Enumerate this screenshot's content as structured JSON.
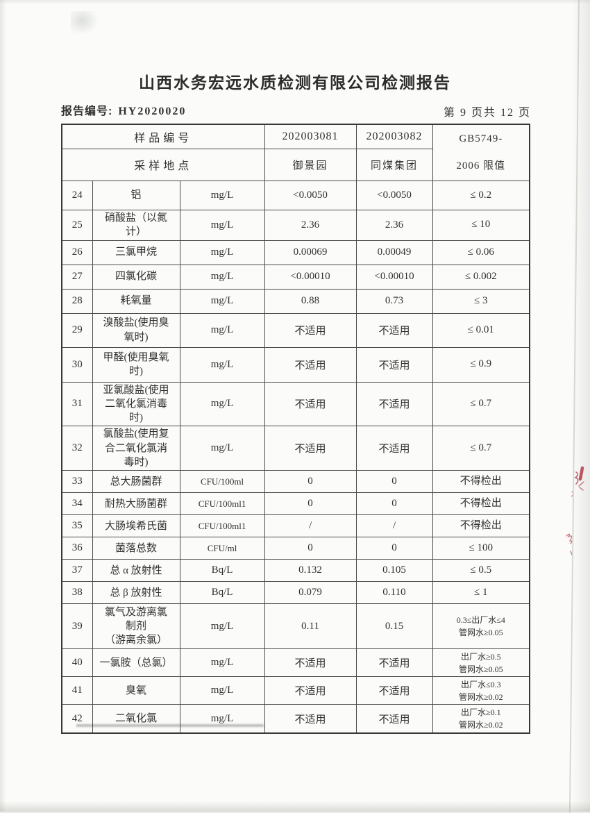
{
  "page": {
    "title": "山西水务宏远水质检测有限公司检测报告",
    "report_no_label": "报告编号:",
    "report_no": "HY2020020",
    "page_indicator": "第 9 页共 12 页"
  },
  "table": {
    "header": {
      "row1_label": "样品编号",
      "row2_label": "采样地点",
      "sample1_id": "202003081",
      "sample2_id": "202003082",
      "sample1_location": "御景园",
      "sample2_location": "同煤集团",
      "limit_label": "GB5749-\n2006 限值"
    },
    "rows": [
      {
        "no": "24",
        "name": "铝",
        "unit": "mg/L",
        "v1": "<0.0050",
        "v2": "<0.0050",
        "limit": "≤ 0.2"
      },
      {
        "no": "25",
        "name": "硝酸盐（以氮\n计）",
        "unit": "mg/L",
        "v1": "2.36",
        "v2": "2.36",
        "limit": "≤ 10"
      },
      {
        "no": "26",
        "name": "三氯甲烷",
        "unit": "mg/L",
        "v1": "0.00069",
        "v2": "0.00049",
        "limit": "≤ 0.06"
      },
      {
        "no": "27",
        "name": "四氯化碳",
        "unit": "mg/L",
        "v1": "<0.00010",
        "v2": "<0.00010",
        "limit": "≤ 0.002"
      },
      {
        "no": "28",
        "name": "耗氧量",
        "unit": "mg/L",
        "v1": "0.88",
        "v2": "0.73",
        "limit": "≤ 3"
      },
      {
        "no": "29",
        "name": "溴酸盐(使用臭\n氧时)",
        "unit": "mg/L",
        "v1": "不适用",
        "v2": "不适用",
        "limit": "≤ 0.01"
      },
      {
        "no": "30",
        "name": "甲醛(使用臭氧\n时)",
        "unit": "mg/L",
        "v1": "不适用",
        "v2": "不适用",
        "limit": "≤ 0.9"
      },
      {
        "no": "31",
        "name": "亚氯酸盐(使用\n二氧化氯消毒\n时)",
        "unit": "mg/L",
        "v1": "不适用",
        "v2": "不适用",
        "limit": "≤ 0.7"
      },
      {
        "no": "32",
        "name": "氯酸盐(使用复\n合二氧化氯消\n毒时)",
        "unit": "mg/L",
        "v1": "不适用",
        "v2": "不适用",
        "limit": "≤ 0.7"
      },
      {
        "no": "33",
        "name": "总大肠菌群",
        "unit": "CFU/100ml",
        "v1": "0",
        "v2": "0",
        "limit": "不得检出"
      },
      {
        "no": "34",
        "name": "耐热大肠菌群",
        "unit": "CFU/100ml1",
        "v1": "0",
        "v2": "0",
        "limit": "不得检出"
      },
      {
        "no": "35",
        "name": "大肠埃希氏菌",
        "unit": "CFU/100ml1",
        "v1": "/",
        "v2": "/",
        "limit": "不得检出"
      },
      {
        "no": "36",
        "name": "菌落总数",
        "unit": "CFU/ml",
        "v1": "0",
        "v2": "0",
        "limit": "≤ 100"
      },
      {
        "no": "37",
        "name": "总 α 放射性",
        "unit": "Bq/L",
        "v1": "0.132",
        "v2": "0.105",
        "limit": "≤ 0.5"
      },
      {
        "no": "38",
        "name": "总 β 放射性",
        "unit": "Bq/L",
        "v1": "0.079",
        "v2": "0.110",
        "limit": "≤ 1"
      },
      {
        "no": "39",
        "name": "氯气及游离氯\n制剂\n（游离余氯）",
        "center": true,
        "unit": "mg/L",
        "v1": "0.11",
        "v2": "0.15",
        "limit": "0.3≤出厂水≤4\n管网水≥0.05"
      },
      {
        "no": "40",
        "name": "一氯胺（总氯）",
        "unit": "mg/L",
        "v1": "不适用",
        "v2": "不适用",
        "limit": "出厂水≥0.5\n管网水≥0.05"
      },
      {
        "no": "41",
        "name": "臭氧",
        "unit": "mg/L",
        "v1": "不适用",
        "v2": "不适用",
        "limit": "出厂水≤0.3\n管网水≥0.02"
      },
      {
        "no": "42",
        "name": "二氧化氯",
        "unit": "mg/L",
        "v1": "不适用",
        "v2": "不适用",
        "limit": "出厂水≥0.1\n管网水≥0.02"
      }
    ]
  },
  "annotations": {
    "red_pen_color": "#b93a4a",
    "ink_color": "#323232",
    "paper_color": "#fbfbf9",
    "red_pen_marks": "handwritten red marks, right page edge"
  }
}
